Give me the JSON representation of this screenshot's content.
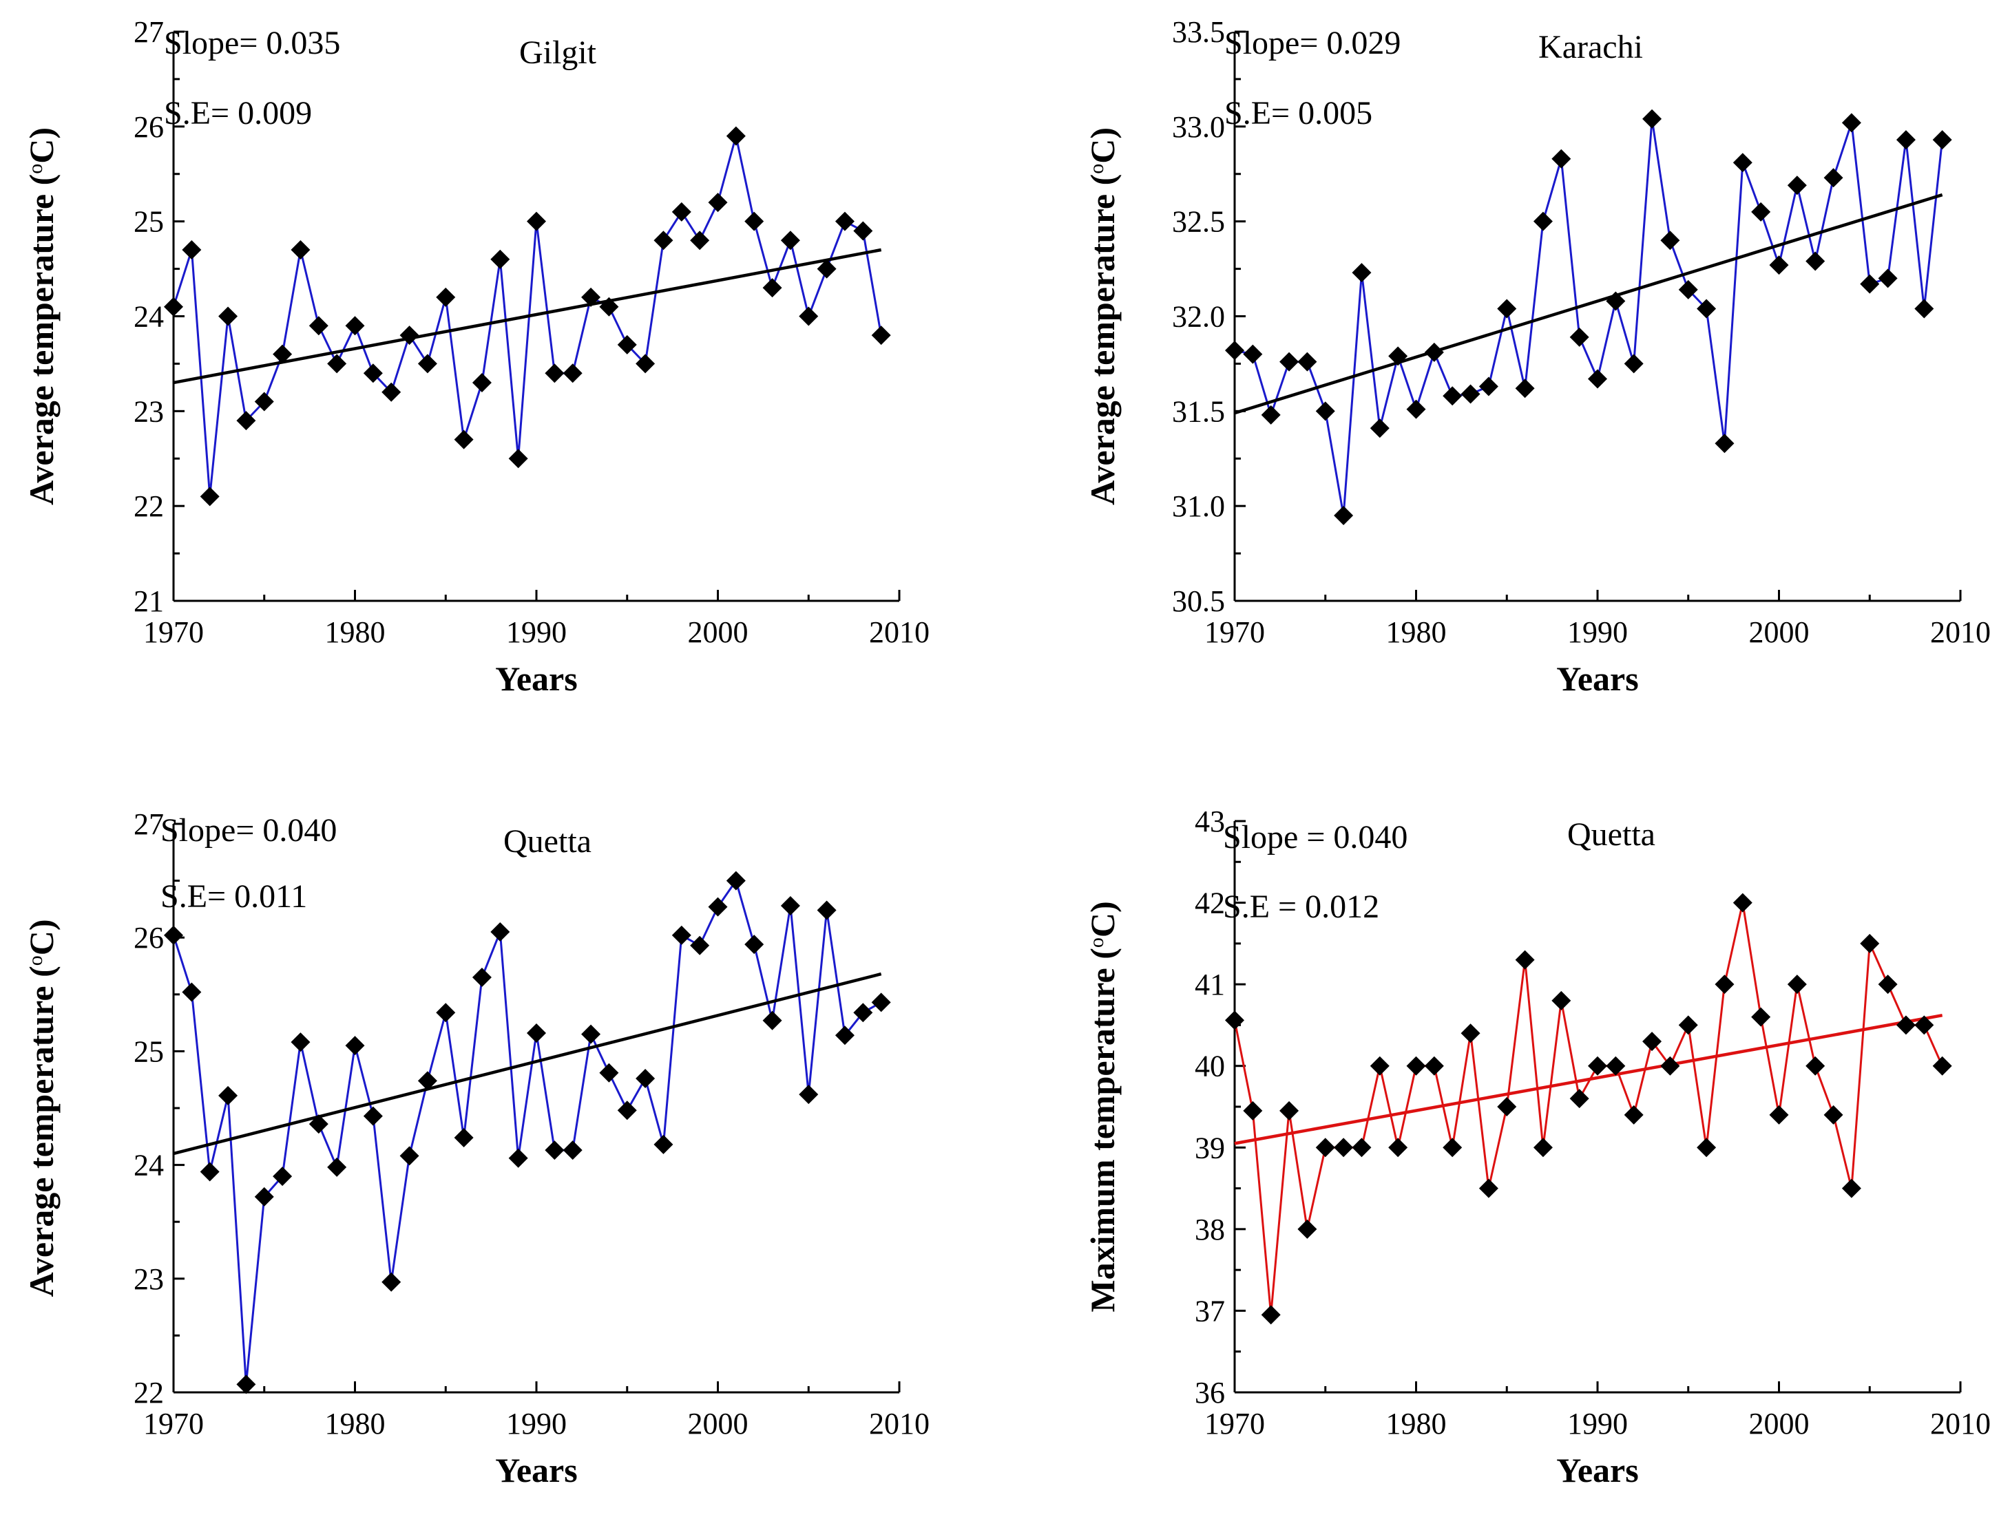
{
  "chart_data": [
    {
      "type": "line",
      "station": "Gilgit",
      "annotations": [
        "Slope= 0.035",
        "S.E= 0.009"
      ],
      "xlabel": "Years",
      "ylabel": "Average temperature (°C)",
      "ylabel_parts": {
        "prefix": "Average temperature (",
        "degree": "o",
        "suffix": "C)"
      },
      "xlim": [
        1970,
        2010
      ],
      "ylim": [
        21,
        27
      ],
      "xticks": [
        1970,
        1980,
        1990,
        2000,
        2010
      ],
      "yticks": [
        21,
        22,
        23,
        24,
        25,
        26,
        27
      ],
      "ytick_labels": [
        "21",
        "22",
        "23",
        "24",
        "25",
        "26",
        "27"
      ],
      "line_color": "#1a1acc",
      "trend_color": "#000000",
      "x": [
        1970,
        1971,
        1972,
        1973,
        1974,
        1975,
        1976,
        1977,
        1978,
        1979,
        1980,
        1981,
        1982,
        1983,
        1984,
        1985,
        1986,
        1987,
        1988,
        1989,
        1990,
        1991,
        1992,
        1993,
        1994,
        1995,
        1996,
        1997,
        1998,
        1999,
        2000,
        2001,
        2002,
        2003,
        2004,
        2005,
        2006,
        2007,
        2008,
        2009
      ],
      "values": [
        24.1,
        24.7,
        22.1,
        24.0,
        22.9,
        23.1,
        23.6,
        24.7,
        23.9,
        23.5,
        23.9,
        23.4,
        23.2,
        23.8,
        23.5,
        24.2,
        22.7,
        23.3,
        24.6,
        22.5,
        25.0,
        23.4,
        23.4,
        24.2,
        24.1,
        23.7,
        23.5,
        24.8,
        25.1,
        24.8,
        25.2,
        25.9,
        25.0,
        24.3,
        24.8,
        24.0,
        24.5,
        25.0,
        24.9,
        23.8
      ],
      "trend": {
        "x": [
          1970,
          2009
        ],
        "y": [
          23.3,
          24.7
        ]
      }
    },
    {
      "type": "line",
      "station": "Karachi",
      "annotations": [
        "Slope= 0.029",
        "S.E= 0.005"
      ],
      "xlabel": "Years",
      "ylabel": "Average temperature (°C)",
      "ylabel_parts": {
        "prefix": "Average temperature (",
        "degree": "o",
        "suffix": "C)"
      },
      "xlim": [
        1970,
        2010
      ],
      "ylim": [
        30.5,
        33.5
      ],
      "xticks": [
        1970,
        1980,
        1990,
        2000,
        2010
      ],
      "yticks": [
        30.5,
        31.0,
        31.5,
        32.0,
        32.5,
        33.0,
        33.5
      ],
      "ytick_labels": [
        "30.5",
        "31.0",
        "31.5",
        "32.0",
        "32.5",
        "33.0",
        "33.5"
      ],
      "line_color": "#1a1acc",
      "trend_color": "#000000",
      "x": [
        1970,
        1971,
        1972,
        1973,
        1974,
        1975,
        1976,
        1977,
        1978,
        1979,
        1980,
        1981,
        1982,
        1983,
        1984,
        1985,
        1986,
        1987,
        1988,
        1989,
        1990,
        1991,
        1992,
        1993,
        1994,
        1995,
        1996,
        1997,
        1998,
        1999,
        2000,
        2001,
        2002,
        2003,
        2004,
        2005,
        2006,
        2007,
        2008,
        2009
      ],
      "values": [
        31.82,
        31.8,
        31.48,
        31.76,
        31.76,
        31.5,
        30.95,
        32.23,
        31.41,
        31.79,
        31.51,
        31.81,
        31.58,
        31.59,
        31.63,
        32.04,
        31.62,
        32.5,
        32.83,
        31.89,
        31.67,
        32.08,
        31.75,
        33.04,
        32.4,
        32.14,
        32.04,
        31.33,
        32.81,
        32.55,
        32.27,
        32.69,
        32.29,
        32.73,
        33.02,
        32.17,
        32.2,
        32.93,
        32.04,
        32.93
      ],
      "trend": {
        "x": [
          1970,
          2009
        ],
        "y": [
          31.49,
          32.64
        ]
      }
    },
    {
      "type": "line",
      "station": "Quetta",
      "annotations": [
        "Slope= 0.040",
        "S.E= 0.011"
      ],
      "xlabel": "Years",
      "ylabel": "Average temperature (°C)",
      "ylabel_parts": {
        "prefix": "Average temperature (",
        "degree": "o",
        "suffix": "C)"
      },
      "xlim": [
        1970,
        2010
      ],
      "ylim": [
        22,
        27
      ],
      "xticks": [
        1970,
        1980,
        1990,
        2000,
        2010
      ],
      "yticks": [
        22,
        23,
        24,
        25,
        26,
        27
      ],
      "ytick_labels": [
        "22",
        "23",
        "24",
        "25",
        "26",
        "27"
      ],
      "line_color": "#1a1acc",
      "trend_color": "#000000",
      "x": [
        1970,
        1971,
        1972,
        1973,
        1974,
        1975,
        1976,
        1977,
        1978,
        1979,
        1980,
        1981,
        1982,
        1983,
        1984,
        1985,
        1986,
        1987,
        1988,
        1989,
        1990,
        1991,
        1992,
        1993,
        1994,
        1995,
        1996,
        1997,
        1998,
        1999,
        2000,
        2001,
        2002,
        2003,
        2004,
        2005,
        2006,
        2007,
        2008,
        2009
      ],
      "values": [
        26.02,
        25.52,
        23.94,
        24.61,
        22.07,
        23.72,
        23.9,
        25.08,
        24.36,
        23.98,
        25.05,
        24.43,
        22.97,
        24.08,
        24.74,
        25.34,
        24.24,
        25.65,
        26.05,
        24.06,
        25.16,
        24.13,
        24.13,
        25.15,
        24.81,
        24.48,
        24.76,
        24.18,
        26.02,
        25.93,
        26.27,
        26.5,
        25.94,
        25.27,
        26.28,
        24.62,
        26.24,
        25.14,
        25.34,
        25.43
      ],
      "trend": {
        "x": [
          1970,
          2009
        ],
        "y": [
          24.1,
          25.68
        ]
      }
    },
    {
      "type": "line",
      "station": "Quetta",
      "annotations": [
        "Slope = 0.040",
        "S.E = 0.012"
      ],
      "xlabel": "Years",
      "ylabel": "Maximum temperature (°C)",
      "ylabel_parts": {
        "prefix": "Maximum temperature (",
        "degree": "o",
        "suffix": "C)"
      },
      "xlim": [
        1970,
        2010
      ],
      "ylim": [
        36,
        43
      ],
      "xticks": [
        1970,
        1980,
        1990,
        2000,
        2010
      ],
      "yticks": [
        36,
        37,
        38,
        39,
        40,
        41,
        42,
        43
      ],
      "ytick_labels": [
        "36",
        "37",
        "38",
        "39",
        "40",
        "41",
        "42",
        "43"
      ],
      "line_color": "#dd1111",
      "trend_color": "#dd1111",
      "x": [
        1970,
        1971,
        1972,
        1973,
        1974,
        1975,
        1976,
        1977,
        1978,
        1979,
        1980,
        1981,
        1982,
        1983,
        1984,
        1985,
        1986,
        1987,
        1988,
        1989,
        1990,
        1991,
        1992,
        1993,
        1994,
        1995,
        1996,
        1997,
        1998,
        1999,
        2000,
        2001,
        2002,
        2003,
        2004,
        2005,
        2006,
        2007,
        2008,
        2009
      ],
      "values": [
        40.56,
        39.45,
        36.95,
        39.45,
        38.0,
        39.0,
        39.0,
        39.0,
        40.0,
        39.0,
        40.0,
        40.0,
        39.0,
        40.4,
        38.5,
        39.5,
        41.3,
        39.0,
        40.8,
        39.6,
        40.0,
        40.0,
        39.4,
        40.3,
        40.0,
        40.5,
        39.0,
        41.0,
        42.0,
        40.6,
        39.4,
        41.0,
        40.0,
        39.4,
        38.5,
        41.5,
        41.0,
        40.5,
        40.5,
        40.0
      ],
      "trend": {
        "x": [
          1970,
          2009
        ],
        "y": [
          39.05,
          40.62
        ]
      }
    }
  ]
}
